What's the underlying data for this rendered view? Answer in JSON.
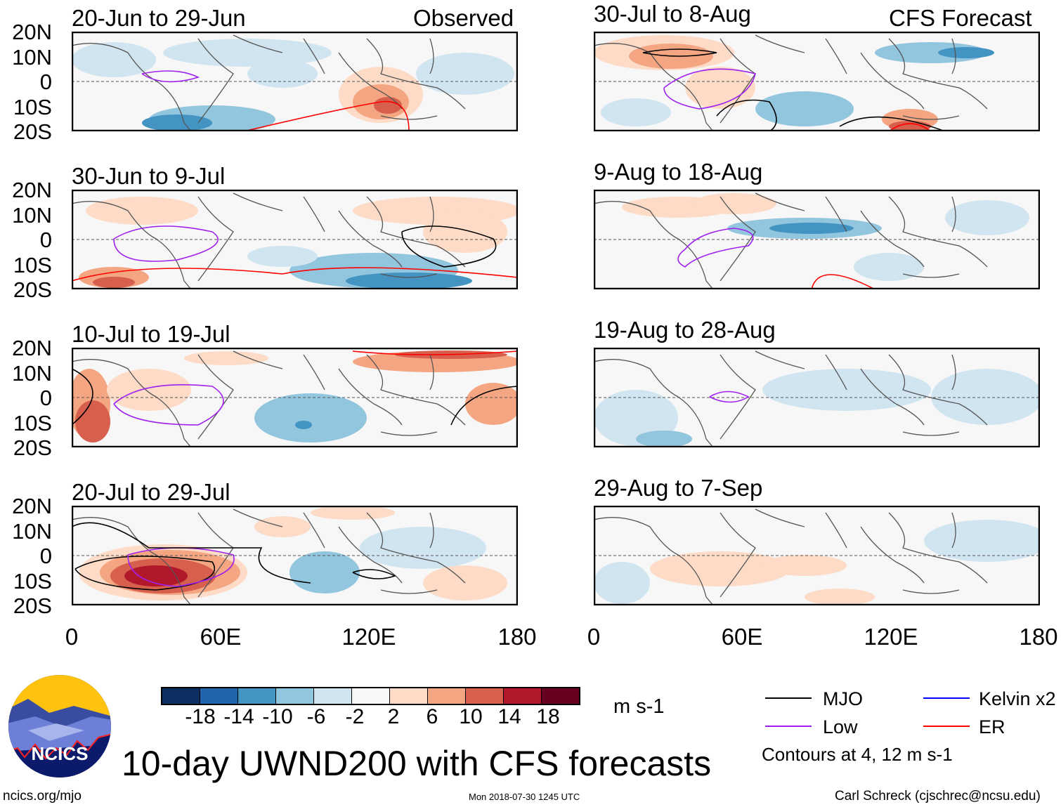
{
  "header": {
    "observed_label": "Observed",
    "forecast_label": "CFS Forecast"
  },
  "panels": {
    "observed": [
      {
        "title": "20-Jun to 29-Jun"
      },
      {
        "title": "30-Jun to 9-Jul"
      },
      {
        "title": "10-Jul to 19-Jul"
      },
      {
        "title": "20-Jul to 29-Jul"
      }
    ],
    "forecast": [
      {
        "title": "30-Jul to 8-Aug"
      },
      {
        "title": "9-Aug to 18-Aug"
      },
      {
        "title": "19-Aug to 28-Aug"
      },
      {
        "title": "29-Aug to 7-Sep"
      }
    ]
  },
  "axes": {
    "y_ticks": [
      "20N",
      "10N",
      "0",
      "10S",
      "20S"
    ],
    "x_ticks": [
      "0",
      "60E",
      "120E",
      "180"
    ]
  },
  "colorbar": {
    "labels": [
      "-18",
      "-14",
      "-10",
      "-6",
      "-2",
      "2",
      "6",
      "10",
      "14",
      "18"
    ],
    "colors": [
      "#0b2f61",
      "#2166ac",
      "#4393c3",
      "#92c5de",
      "#d1e5f0",
      "#f7f7f7",
      "#fddbc7",
      "#f4a582",
      "#d6604d",
      "#b2182b",
      "#67001f"
    ],
    "units": "m s-1"
  },
  "legend": {
    "items": [
      {
        "label": "MJO",
        "color": "#000000"
      },
      {
        "label": "Kelvin x2",
        "color": "#0000ff"
      },
      {
        "label": "Low",
        "color": "#a020f0"
      },
      {
        "label": "ER",
        "color": "#ff0000"
      }
    ],
    "note": "Contours at 4, 12 m s-1"
  },
  "title": "10-day UWND200 with CFS forecasts",
  "logo_text": "NCICS",
  "footer": {
    "url": "ncics.org/mjo",
    "timestamp": "Mon 2018-07-30 1245 UTC",
    "credit": "Carl Schreck (cjschrec@ncsu.edu)"
  }
}
